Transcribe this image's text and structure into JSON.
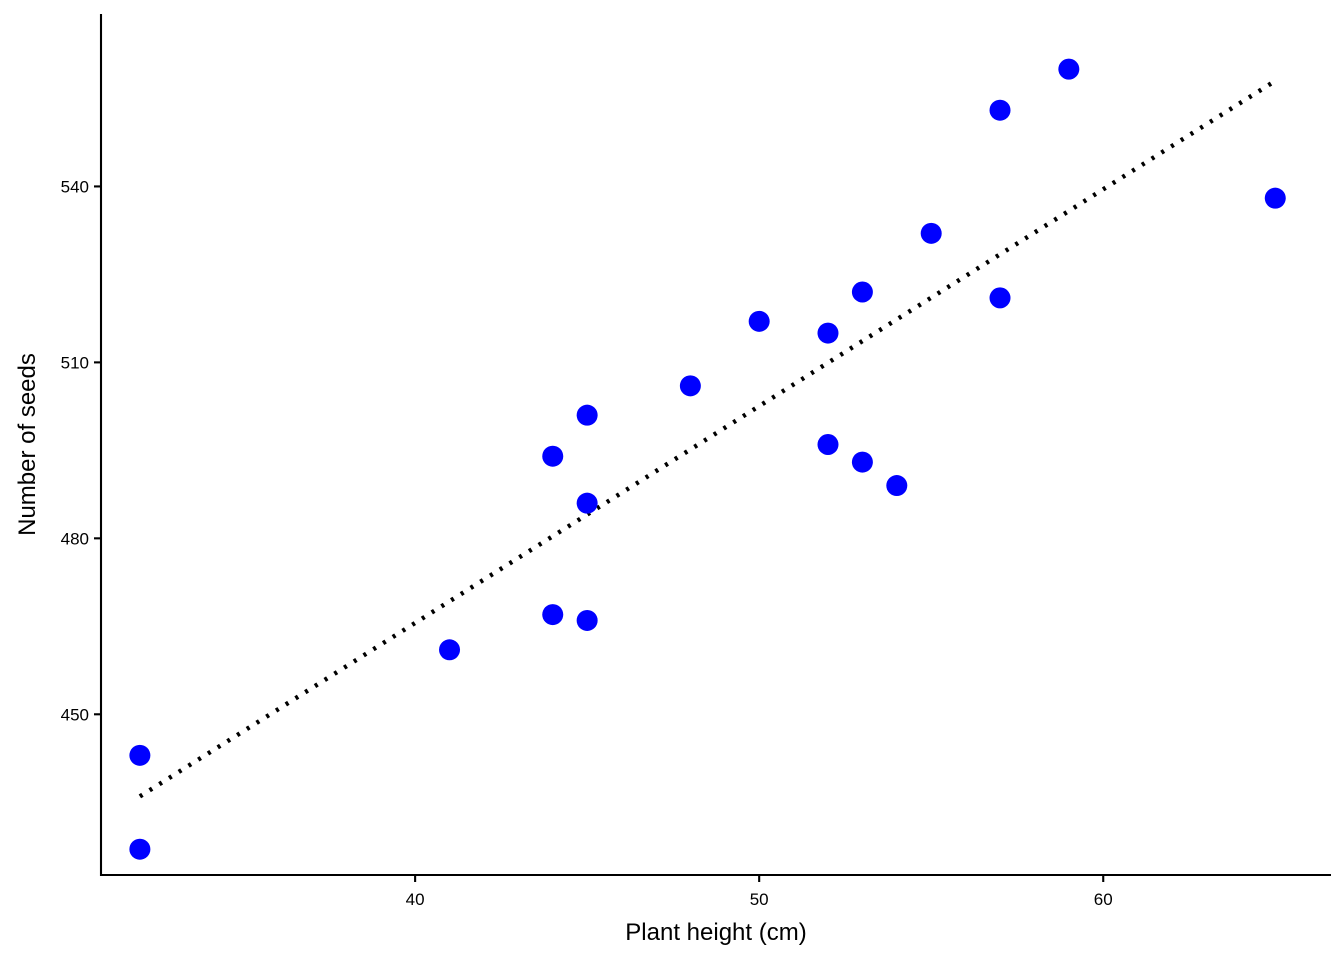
{
  "chart_data": {
    "type": "scatter",
    "title": "",
    "xlabel": "Plant height (cm)",
    "ylabel": "Number of seeds",
    "xlim": [
      30.87,
      66.62
    ],
    "ylim": [
      422.6,
      569.4
    ],
    "x_ticks": [
      40,
      50,
      60
    ],
    "y_ticks": [
      450,
      480,
      510,
      540
    ],
    "x_tick_labels": [
      "40",
      "50",
      "60"
    ],
    "y_tick_labels": [
      "450",
      "480",
      "510",
      "540"
    ],
    "grid": false,
    "point_color": "#0000ff",
    "series": [
      {
        "points": [
          {
            "x": 32,
            "y": 443
          },
          {
            "x": 32,
            "y": 427
          },
          {
            "x": 41,
            "y": 461
          },
          {
            "x": 44,
            "y": 494
          },
          {
            "x": 44,
            "y": 467
          },
          {
            "x": 45,
            "y": 501
          },
          {
            "x": 45,
            "y": 486
          },
          {
            "x": 45,
            "y": 466
          },
          {
            "x": 48,
            "y": 506
          },
          {
            "x": 50,
            "y": 517
          },
          {
            "x": 52,
            "y": 515
          },
          {
            "x": 52,
            "y": 496
          },
          {
            "x": 53,
            "y": 522
          },
          {
            "x": 53,
            "y": 493
          },
          {
            "x": 54,
            "y": 489
          },
          {
            "x": 55,
            "y": 532
          },
          {
            "x": 57,
            "y": 553
          },
          {
            "x": 57,
            "y": 521
          },
          {
            "x": 59,
            "y": 560
          },
          {
            "x": 65,
            "y": 538
          }
        ]
      }
    ],
    "fit_line": {
      "style": "dotted",
      "color": "#000000",
      "points": [
        {
          "x": 32,
          "y": 436
        },
        {
          "x": 65,
          "y": 558
        }
      ]
    }
  }
}
